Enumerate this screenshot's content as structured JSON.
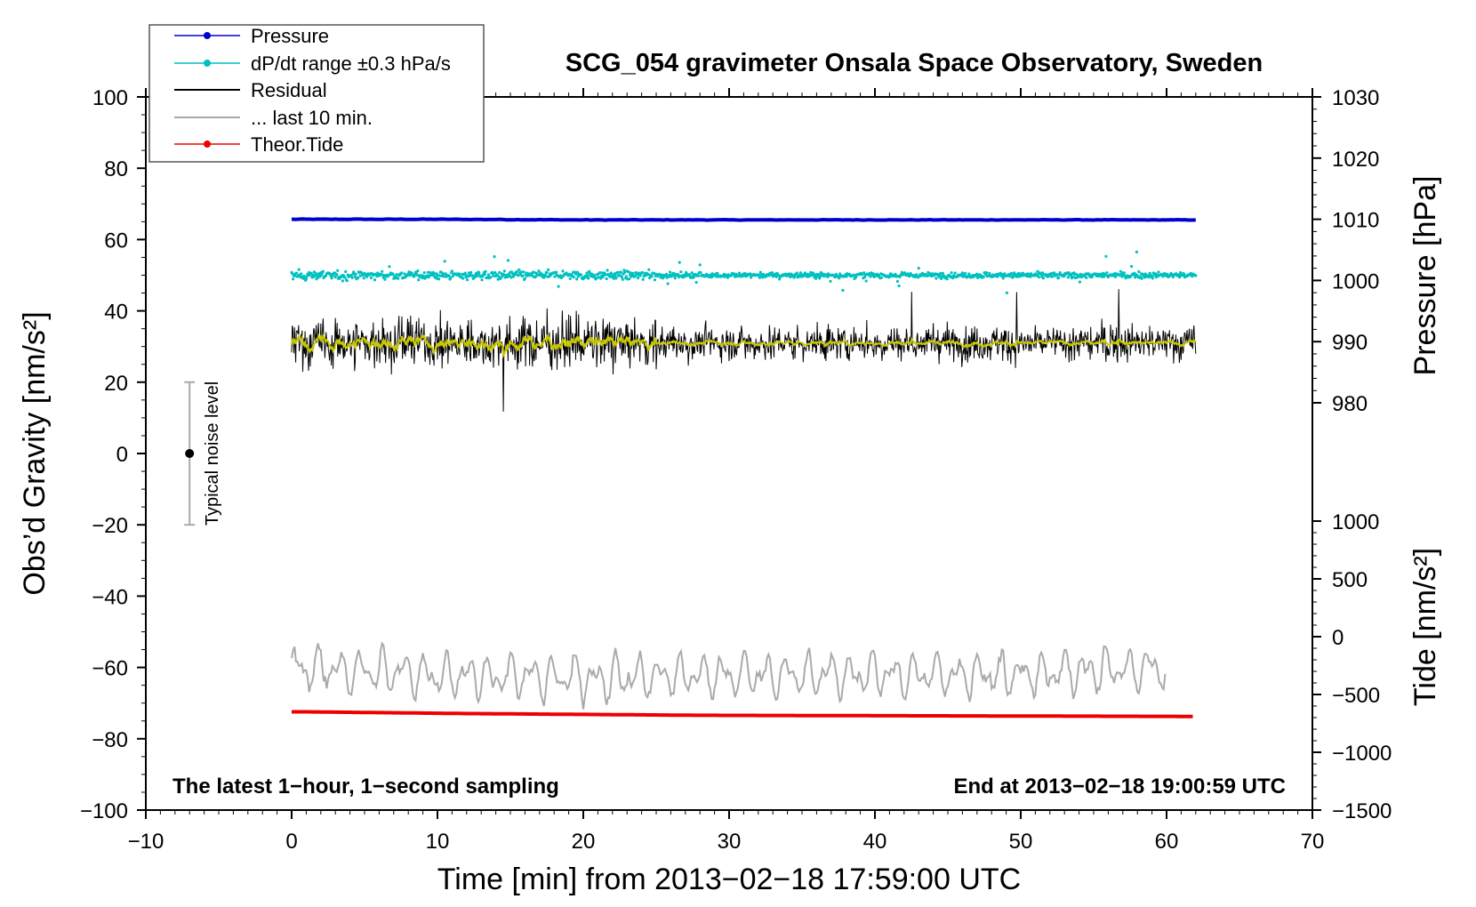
{
  "chart_data": {
    "type": "line",
    "title": "SCG_054 gravimeter Onsala Space Observatory, Sweden",
    "xlabel": "Time [min] from 2013−02−18 17:59:00 UTC",
    "ylabel_left": "Obs’d Gravity [nm/s²]",
    "ylabel_right_top": "Pressure [hPa]",
    "ylabel_right_bottom": "Tide [nm/s²]",
    "xlim": [
      -10,
      70
    ],
    "ylim_left": [
      -100,
      100
    ],
    "ylim_pressure": [
      975,
      1030
    ],
    "ylim_tide": [
      -1500,
      1000
    ],
    "grid": false,
    "legend_placement": "top-left",
    "x_ticks": [
      "−10",
      "0",
      "10",
      "20",
      "30",
      "40",
      "50",
      "60",
      "70"
    ],
    "y_left_ticks": [
      "−100",
      "−80",
      "−60",
      "−40",
      "−20",
      "0",
      "20",
      "40",
      "60",
      "80",
      "100"
    ],
    "y_pressure_ticks": [
      "980",
      "990",
      "1000",
      "1010",
      "1020",
      "1030"
    ],
    "y_tide_ticks": [
      "−1500",
      "−1000",
      "−500",
      "0",
      "500",
      "1000"
    ],
    "series": [
      {
        "name": "Pressure",
        "color": "#0000cc",
        "x": [
          0,
          10,
          20,
          30,
          40,
          50,
          62
        ],
        "values": [
          1010.0,
          1010.0,
          1009.9,
          1009.9,
          1009.9,
          1009.9,
          1009.9
        ]
      },
      {
        "name": "dP/dt range ±0.3 hPa/s",
        "color": "#00c0c0",
        "x": [
          0,
          10,
          20,
          30,
          40,
          50,
          62
        ],
        "values": [
          50,
          50,
          50,
          50,
          50,
          50,
          50
        ]
      },
      {
        "name": "Residual",
        "color": "#000000",
        "x": [
          0,
          10,
          20,
          30,
          40,
          50,
          62
        ],
        "values": [
          31,
          31,
          31,
          31,
          31,
          31,
          31
        ]
      },
      {
        "name": "... last 10 min.",
        "color": "#aaaaaa",
        "x": [
          0,
          10,
          20,
          30,
          40,
          50,
          60
        ],
        "values": [
          -60,
          -62,
          -63,
          -62,
          -62,
          -62,
          -60
        ]
      },
      {
        "name": "Theor.Tide",
        "color": "#ee0000",
        "x": [
          0,
          1,
          12,
          28,
          62
        ],
        "values": [
          -650,
          -650,
          -665,
          -680,
          -690
        ]
      }
    ],
    "annotations": {
      "noise_label": "Typical noise level",
      "noise_range": [
        -20,
        20
      ],
      "noise_x": -7,
      "left_note": "The latest 1−hour, 1−second sampling",
      "right_note": "End at 2013−02−18 19:00:59 UTC"
    }
  }
}
